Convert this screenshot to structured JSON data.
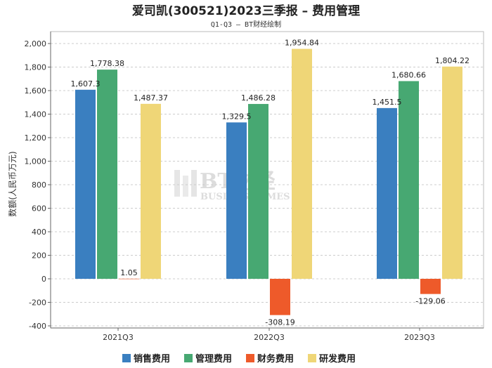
{
  "chart_data": {
    "type": "bar",
    "title": "爱司凯(300521)2023三季报 – 费用管理",
    "subtitle": "Q1-Q3 – BT财经绘制",
    "xlabel": "",
    "ylabel": "数额(人民币万元)",
    "ylim": [
      -400,
      2000
    ],
    "yticks": [
      -400,
      -200,
      0,
      200,
      400,
      600,
      800,
      1000,
      1200,
      1400,
      1600,
      1800,
      2000
    ],
    "ytick_labels": [
      "-400",
      "-200",
      "0",
      "200",
      "400",
      "600",
      "800",
      "1,000",
      "1,200",
      "1,400",
      "1,600",
      "1,800",
      "2,000"
    ],
    "categories": [
      "2021Q3",
      "2022Q3",
      "2023Q3"
    ],
    "grid": true,
    "legend_position": "bottom",
    "series": [
      {
        "name": "销售费用",
        "color": "#3a7fc0",
        "values": [
          1607.3,
          1329.5,
          1451.5
        ],
        "labels": [
          "1,607.3",
          "1,329.5",
          "1,451.5"
        ]
      },
      {
        "name": "管理费用",
        "color": "#47a872",
        "values": [
          1778.38,
          1486.28,
          1680.66
        ],
        "labels": [
          "1,778.38",
          "1,486.28",
          "1,680.66"
        ]
      },
      {
        "name": "财务费用",
        "color": "#ee5a2a",
        "values": [
          1.05,
          -308.19,
          -129.06
        ],
        "labels": [
          "1.05",
          "-308.19",
          "-129.06"
        ]
      },
      {
        "name": "研发费用",
        "color": "#efd677",
        "values": [
          1487.37,
          1954.84,
          1804.22
        ],
        "labels": [
          "1,487.37",
          "1,954.84",
          "1,804.22"
        ]
      }
    ]
  },
  "watermark": {
    "main": "BT财经",
    "sub": "BUSINESSTIMES"
  }
}
